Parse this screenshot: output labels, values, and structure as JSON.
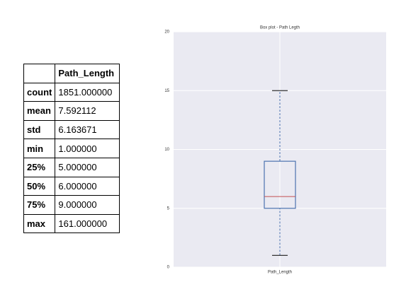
{
  "table": {
    "header": [
      "Path_Length"
    ],
    "rows": [
      [
        "count",
        "1851.000000"
      ],
      [
        "mean",
        "7.592112"
      ],
      [
        "std",
        "6.163671"
      ],
      [
        "min",
        "1.000000"
      ],
      [
        "25%",
        "5.000000"
      ],
      [
        "50%",
        "6.000000"
      ],
      [
        "75%",
        "9.000000"
      ],
      [
        "max",
        "161.000000"
      ]
    ]
  },
  "chart_data": {
    "type": "box",
    "title": "Box plot - Path Legth",
    "categories": [
      "Path_Length"
    ],
    "boxes": [
      {
        "whislo": 1,
        "q1": 5,
        "med": 6,
        "q3": 9,
        "whishi": 15
      }
    ],
    "box_color": "#4c72b0",
    "median_color": "#c44e52",
    "cap_color": "#333333",
    "background": "#eaeaf2",
    "grid": true,
    "ylim": [
      0,
      20
    ],
    "yticks": [
      0,
      5,
      10,
      15,
      20
    ]
  }
}
